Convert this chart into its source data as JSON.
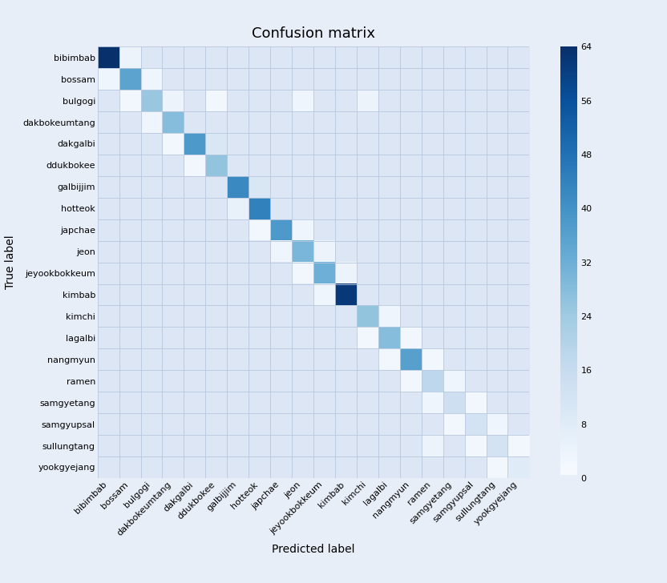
{
  "labels": [
    "bibimbab",
    "bossam",
    "bulgogi",
    "dakbokeumtang",
    "dakgalbi",
    "ddukbokee",
    "galbijjim",
    "hotteok",
    "japchae",
    "jeon",
    "jeyookbokkeum",
    "kimbab",
    "kimchi",
    "lagalbi",
    "nangmyun",
    "ramen",
    "samgyetang",
    "samgyupsal",
    "sullungtang",
    "yookgyejang"
  ],
  "title": "Confusion matrix",
  "xlabel": "Predicted label",
  "ylabel": "True label",
  "vmin": 0,
  "vmax": 64,
  "colorbar_ticks": [
    0,
    8,
    16,
    24,
    32,
    40,
    48,
    56,
    64
  ],
  "matrix": [
    [
      64,
      4,
      0,
      0,
      0,
      0,
      0,
      0,
      0,
      0,
      0,
      0,
      0,
      0,
      0,
      0,
      0,
      0,
      0,
      0
    ],
    [
      3,
      35,
      3,
      0,
      0,
      0,
      0,
      0,
      0,
      0,
      0,
      0,
      0,
      0,
      0,
      0,
      0,
      0,
      0,
      0
    ],
    [
      0,
      2,
      25,
      4,
      0,
      2,
      0,
      0,
      0,
      3,
      0,
      0,
      4,
      0,
      0,
      0,
      0,
      0,
      0,
      0
    ],
    [
      0,
      0,
      3,
      28,
      0,
      0,
      0,
      0,
      0,
      0,
      0,
      0,
      0,
      0,
      0,
      0,
      0,
      0,
      0,
      0
    ],
    [
      0,
      0,
      0,
      2,
      38,
      10,
      0,
      0,
      0,
      0,
      0,
      0,
      0,
      0,
      0,
      0,
      0,
      0,
      0,
      0
    ],
    [
      0,
      0,
      0,
      0,
      2,
      26,
      0,
      0,
      0,
      0,
      0,
      0,
      0,
      0,
      0,
      0,
      0,
      0,
      0,
      0
    ],
    [
      0,
      0,
      0,
      0,
      0,
      0,
      42,
      10,
      0,
      0,
      0,
      0,
      0,
      0,
      0,
      0,
      0,
      0,
      0,
      0
    ],
    [
      0,
      0,
      0,
      0,
      0,
      0,
      5,
      44,
      0,
      0,
      0,
      0,
      0,
      0,
      0,
      0,
      0,
      0,
      0,
      0
    ],
    [
      0,
      0,
      0,
      0,
      0,
      0,
      0,
      2,
      38,
      3,
      0,
      0,
      0,
      0,
      0,
      0,
      0,
      0,
      0,
      0
    ],
    [
      0,
      0,
      0,
      0,
      0,
      0,
      0,
      0,
      3,
      30,
      4,
      0,
      0,
      0,
      0,
      0,
      0,
      0,
      0,
      0
    ],
    [
      0,
      0,
      0,
      0,
      0,
      0,
      0,
      0,
      0,
      2,
      32,
      4,
      0,
      0,
      0,
      0,
      0,
      0,
      0,
      0
    ],
    [
      0,
      0,
      0,
      0,
      0,
      0,
      0,
      0,
      0,
      0,
      3,
      62,
      0,
      0,
      0,
      0,
      0,
      0,
      0,
      0
    ],
    [
      0,
      0,
      0,
      0,
      0,
      0,
      0,
      0,
      0,
      0,
      0,
      0,
      26,
      3,
      0,
      0,
      0,
      0,
      0,
      0
    ],
    [
      0,
      0,
      0,
      0,
      0,
      0,
      0,
      0,
      0,
      0,
      0,
      0,
      2,
      28,
      2,
      0,
      0,
      0,
      0,
      0
    ],
    [
      0,
      0,
      0,
      0,
      0,
      0,
      0,
      0,
      0,
      0,
      0,
      0,
      0,
      2,
      36,
      2,
      0,
      0,
      0,
      0
    ],
    [
      0,
      0,
      0,
      0,
      0,
      0,
      0,
      0,
      0,
      0,
      0,
      0,
      0,
      0,
      2,
      18,
      3,
      0,
      0,
      0
    ],
    [
      0,
      0,
      0,
      0,
      0,
      0,
      0,
      0,
      0,
      0,
      0,
      0,
      0,
      0,
      0,
      3,
      14,
      2,
      0,
      0
    ],
    [
      0,
      0,
      0,
      0,
      0,
      0,
      0,
      0,
      0,
      0,
      0,
      0,
      0,
      0,
      0,
      0,
      2,
      12,
      3,
      0
    ],
    [
      0,
      0,
      0,
      0,
      0,
      0,
      0,
      0,
      0,
      0,
      0,
      0,
      0,
      0,
      0,
      4,
      0,
      2,
      12,
      2
    ],
    [
      0,
      0,
      0,
      0,
      0,
      0,
      0,
      0,
      0,
      0,
      0,
      0,
      0,
      0,
      0,
      0,
      0,
      0,
      2,
      8
    ]
  ],
  "background_color": "#e8eef8",
  "cell_bg_color": "#dce6f5",
  "grid_color": "#b8c8de",
  "cmap": "Blues",
  "figsize": [
    8.32,
    7.28
  ],
  "dpi": 100,
  "title_fontsize": 13,
  "label_fontsize": 8,
  "axis_label_fontsize": 10
}
